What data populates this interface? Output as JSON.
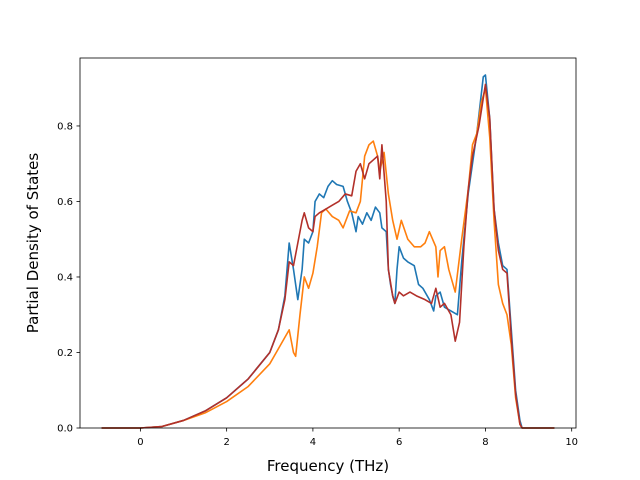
{
  "chart_data": {
    "type": "line",
    "title": "",
    "xlabel": "Frequency (THz)",
    "ylabel": "Partial Density of States",
    "xlim": [
      -1.4,
      10.1
    ],
    "ylim": [
      0.0,
      0.98
    ],
    "xticks": [
      0,
      2,
      4,
      6,
      8,
      10
    ],
    "yticks": [
      0.0,
      0.2,
      0.4,
      0.6,
      0.8
    ],
    "xtick_labels": [
      "0",
      "2",
      "4",
      "6",
      "8",
      "10"
    ],
    "ytick_labels": [
      "0.0",
      "0.2",
      "0.4",
      "0.6",
      "0.8"
    ],
    "grid": false,
    "legend": "none",
    "series": [
      {
        "color": "#1f77b4",
        "points": [
          [
            -0.9,
            0
          ],
          [
            0,
            0
          ],
          [
            0.5,
            0.004
          ],
          [
            1,
            0.02
          ],
          [
            1.5,
            0.045
          ],
          [
            2,
            0.08
          ],
          [
            2.5,
            0.13
          ],
          [
            3,
            0.2
          ],
          [
            3.2,
            0.26
          ],
          [
            3.35,
            0.35
          ],
          [
            3.45,
            0.49
          ],
          [
            3.55,
            0.42
          ],
          [
            3.65,
            0.34
          ],
          [
            3.75,
            0.42
          ],
          [
            3.8,
            0.5
          ],
          [
            3.9,
            0.49
          ],
          [
            4.0,
            0.52
          ],
          [
            4.05,
            0.6
          ],
          [
            4.15,
            0.62
          ],
          [
            4.25,
            0.61
          ],
          [
            4.35,
            0.64
          ],
          [
            4.45,
            0.655
          ],
          [
            4.55,
            0.645
          ],
          [
            4.7,
            0.64
          ],
          [
            4.8,
            0.6
          ],
          [
            4.9,
            0.57
          ],
          [
            5.0,
            0.52
          ],
          [
            5.05,
            0.56
          ],
          [
            5.15,
            0.54
          ],
          [
            5.25,
            0.57
          ],
          [
            5.35,
            0.55
          ],
          [
            5.45,
            0.585
          ],
          [
            5.55,
            0.57
          ],
          [
            5.6,
            0.53
          ],
          [
            5.7,
            0.52
          ],
          [
            5.75,
            0.42
          ],
          [
            5.8,
            0.38
          ],
          [
            5.85,
            0.35
          ],
          [
            5.9,
            0.33
          ],
          [
            5.95,
            0.42
          ],
          [
            6.0,
            0.48
          ],
          [
            6.1,
            0.45
          ],
          [
            6.2,
            0.44
          ],
          [
            6.35,
            0.43
          ],
          [
            6.45,
            0.38
          ],
          [
            6.55,
            0.37
          ],
          [
            6.7,
            0.34
          ],
          [
            6.8,
            0.31
          ],
          [
            6.85,
            0.35
          ],
          [
            6.95,
            0.36
          ],
          [
            7.05,
            0.32
          ],
          [
            7.2,
            0.31
          ],
          [
            7.35,
            0.3
          ],
          [
            7.45,
            0.44
          ],
          [
            7.6,
            0.62
          ],
          [
            7.8,
            0.78
          ],
          [
            7.95,
            0.93
          ],
          [
            8.0,
            0.935
          ],
          [
            8.1,
            0.82
          ],
          [
            8.2,
            0.58
          ],
          [
            8.3,
            0.49
          ],
          [
            8.4,
            0.43
          ],
          [
            8.5,
            0.42
          ],
          [
            8.6,
            0.26
          ],
          [
            8.7,
            0.1
          ],
          [
            8.8,
            0.02
          ],
          [
            8.85,
            0
          ],
          [
            9.6,
            0
          ]
        ]
      },
      {
        "color": "#ff7f0e",
        "points": [
          [
            -0.9,
            0
          ],
          [
            0,
            0
          ],
          [
            0.5,
            0.004
          ],
          [
            1,
            0.02
          ],
          [
            1.5,
            0.04
          ],
          [
            2,
            0.07
          ],
          [
            2.5,
            0.11
          ],
          [
            3,
            0.17
          ],
          [
            3.2,
            0.21
          ],
          [
            3.35,
            0.24
          ],
          [
            3.45,
            0.26
          ],
          [
            3.55,
            0.2
          ],
          [
            3.6,
            0.19
          ],
          [
            3.7,
            0.3
          ],
          [
            3.8,
            0.4
          ],
          [
            3.9,
            0.37
          ],
          [
            4.0,
            0.41
          ],
          [
            4.1,
            0.48
          ],
          [
            4.2,
            0.57
          ],
          [
            4.3,
            0.58
          ],
          [
            4.45,
            0.56
          ],
          [
            4.6,
            0.55
          ],
          [
            4.7,
            0.53
          ],
          [
            4.85,
            0.575
          ],
          [
            5.0,
            0.57
          ],
          [
            5.1,
            0.6
          ],
          [
            5.2,
            0.72
          ],
          [
            5.3,
            0.75
          ],
          [
            5.4,
            0.76
          ],
          [
            5.5,
            0.72
          ],
          [
            5.55,
            0.68
          ],
          [
            5.65,
            0.73
          ],
          [
            5.75,
            0.62
          ],
          [
            5.85,
            0.55
          ],
          [
            5.95,
            0.5
          ],
          [
            6.05,
            0.55
          ],
          [
            6.2,
            0.5
          ],
          [
            6.35,
            0.48
          ],
          [
            6.5,
            0.48
          ],
          [
            6.6,
            0.49
          ],
          [
            6.7,
            0.52
          ],
          [
            6.85,
            0.48
          ],
          [
            6.9,
            0.4
          ],
          [
            6.95,
            0.47
          ],
          [
            7.05,
            0.48
          ],
          [
            7.15,
            0.42
          ],
          [
            7.3,
            0.36
          ],
          [
            7.45,
            0.5
          ],
          [
            7.6,
            0.63
          ],
          [
            7.7,
            0.75
          ],
          [
            7.8,
            0.78
          ],
          [
            7.9,
            0.86
          ],
          [
            8.0,
            0.9
          ],
          [
            8.1,
            0.77
          ],
          [
            8.2,
            0.55
          ],
          [
            8.3,
            0.38
          ],
          [
            8.4,
            0.33
          ],
          [
            8.5,
            0.3
          ],
          [
            8.6,
            0.22
          ],
          [
            8.7,
            0.08
          ],
          [
            8.8,
            0.01
          ],
          [
            8.85,
            0
          ],
          [
            9.6,
            0
          ]
        ]
      },
      {
        "color": "#b2302a",
        "points": [
          [
            -0.9,
            0
          ],
          [
            0,
            0
          ],
          [
            0.5,
            0.004
          ],
          [
            1,
            0.02
          ],
          [
            1.5,
            0.045
          ],
          [
            2,
            0.08
          ],
          [
            2.5,
            0.13
          ],
          [
            3,
            0.2
          ],
          [
            3.2,
            0.26
          ],
          [
            3.35,
            0.34
          ],
          [
            3.45,
            0.44
          ],
          [
            3.55,
            0.43
          ],
          [
            3.65,
            0.49
          ],
          [
            3.75,
            0.55
          ],
          [
            3.8,
            0.57
          ],
          [
            3.9,
            0.53
          ],
          [
            4.0,
            0.52
          ],
          [
            4.05,
            0.56
          ],
          [
            4.15,
            0.57
          ],
          [
            4.3,
            0.58
          ],
          [
            4.45,
            0.59
          ],
          [
            4.6,
            0.6
          ],
          [
            4.75,
            0.62
          ],
          [
            4.9,
            0.615
          ],
          [
            5.0,
            0.68
          ],
          [
            5.1,
            0.7
          ],
          [
            5.2,
            0.66
          ],
          [
            5.3,
            0.7
          ],
          [
            5.4,
            0.71
          ],
          [
            5.5,
            0.72
          ],
          [
            5.55,
            0.66
          ],
          [
            5.6,
            0.75
          ],
          [
            5.7,
            0.6
          ],
          [
            5.75,
            0.42
          ],
          [
            5.85,
            0.35
          ],
          [
            5.9,
            0.33
          ],
          [
            6.0,
            0.36
          ],
          [
            6.1,
            0.35
          ],
          [
            6.25,
            0.36
          ],
          [
            6.4,
            0.35
          ],
          [
            6.6,
            0.34
          ],
          [
            6.75,
            0.33
          ],
          [
            6.85,
            0.37
          ],
          [
            6.95,
            0.32
          ],
          [
            7.05,
            0.33
          ],
          [
            7.2,
            0.3
          ],
          [
            7.3,
            0.23
          ],
          [
            7.4,
            0.28
          ],
          [
            7.5,
            0.48
          ],
          [
            7.6,
            0.63
          ],
          [
            7.7,
            0.72
          ],
          [
            7.85,
            0.8
          ],
          [
            8.0,
            0.91
          ],
          [
            8.1,
            0.82
          ],
          [
            8.2,
            0.58
          ],
          [
            8.3,
            0.47
          ],
          [
            8.4,
            0.42
          ],
          [
            8.5,
            0.41
          ],
          [
            8.6,
            0.24
          ],
          [
            8.7,
            0.09
          ],
          [
            8.8,
            0.01
          ],
          [
            8.85,
            0
          ],
          [
            9.6,
            0
          ]
        ]
      }
    ]
  }
}
